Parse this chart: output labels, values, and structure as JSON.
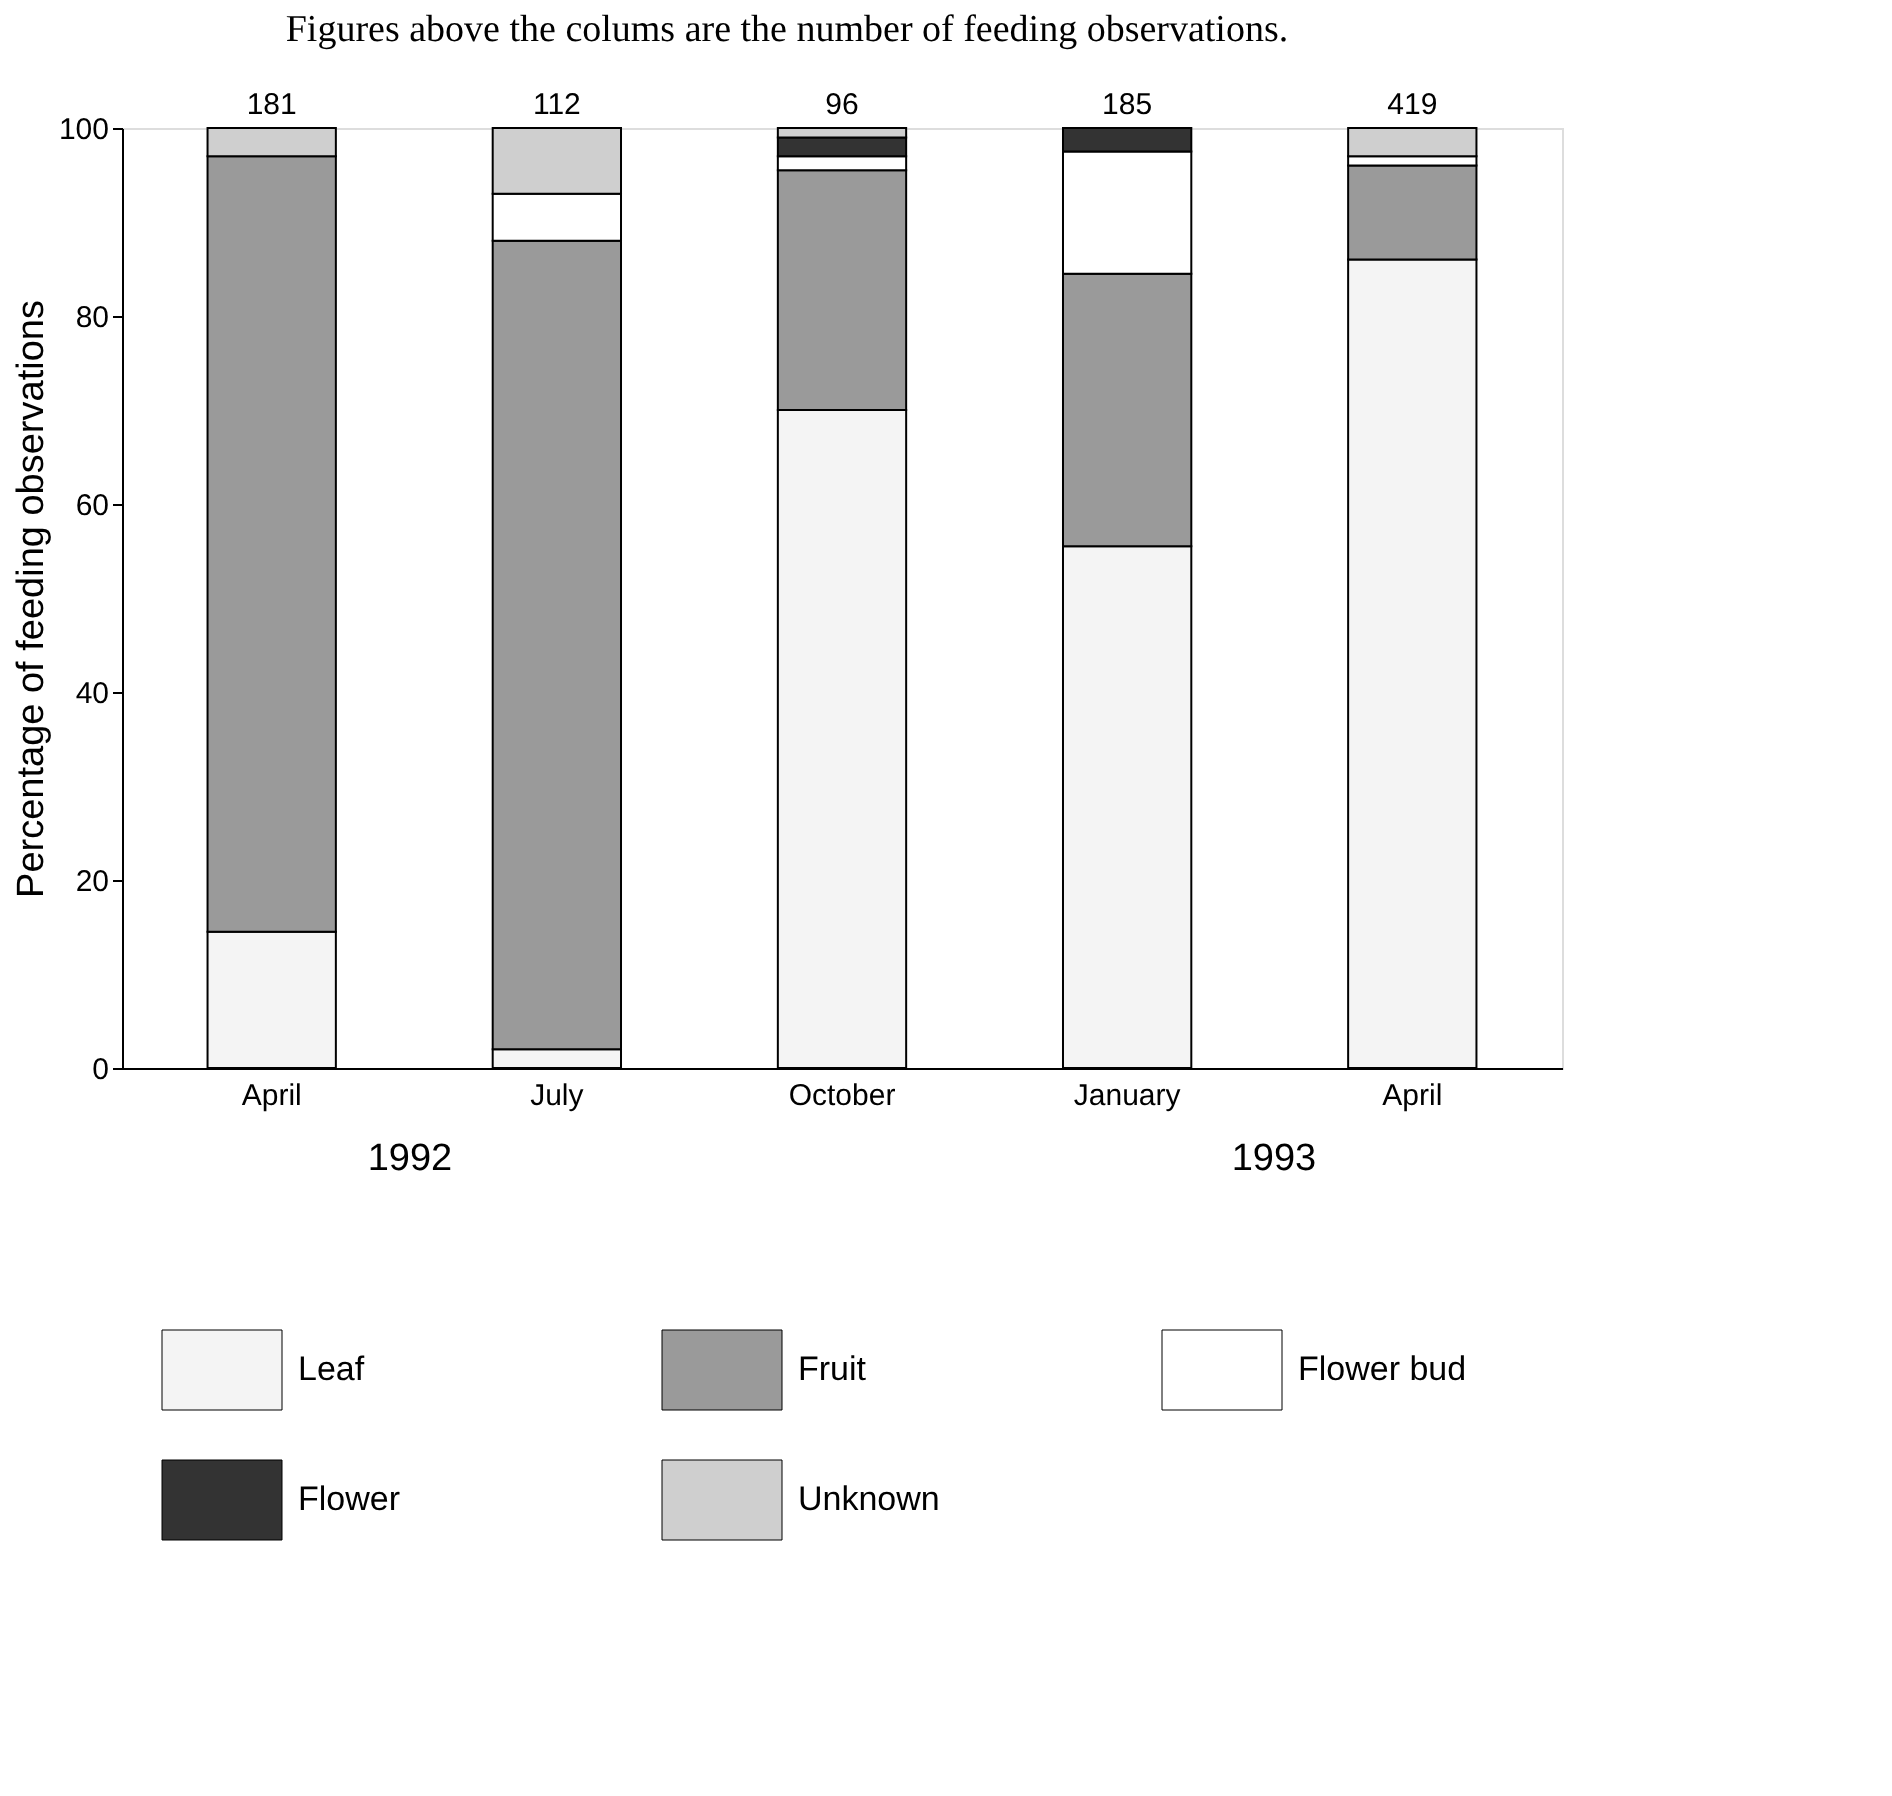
{
  "chart_data": {
    "type": "bar",
    "title": "Figures above the colums are the number of feeding observations.",
    "ylabel": "Percentage of feeding observations",
    "categories": [
      "April",
      "July",
      "October",
      "January",
      "April"
    ],
    "stacked": true,
    "series": [
      {
        "name": "Leaf",
        "color": "#f4f4f4",
        "values": [
          14.5,
          2,
          70,
          55.5,
          86
        ]
      },
      {
        "name": "Fruit",
        "color": "#9a9a9a",
        "values": [
          82.5,
          86,
          25.5,
          29,
          10
        ]
      },
      {
        "name": "Flower bud",
        "color": "#ffffff",
        "values": [
          null,
          5,
          1.5,
          13,
          1
        ]
      },
      {
        "name": "Flower",
        "color": "#333333",
        "values": [
          null,
          null,
          2,
          2.5,
          null
        ]
      },
      {
        "name": "Unknown",
        "color": "#cfcfcf",
        "values": [
          3,
          7,
          1,
          null,
          3
        ]
      }
    ],
    "annotations": [
      "181",
      "112",
      "96",
      "185",
      "419",
      "1992",
      "1993"
    ],
    "ylim": [
      0,
      100
    ],
    "yticks": [
      0,
      20,
      40,
      60,
      80,
      100
    ],
    "grid": false,
    "legend": "bottom"
  }
}
